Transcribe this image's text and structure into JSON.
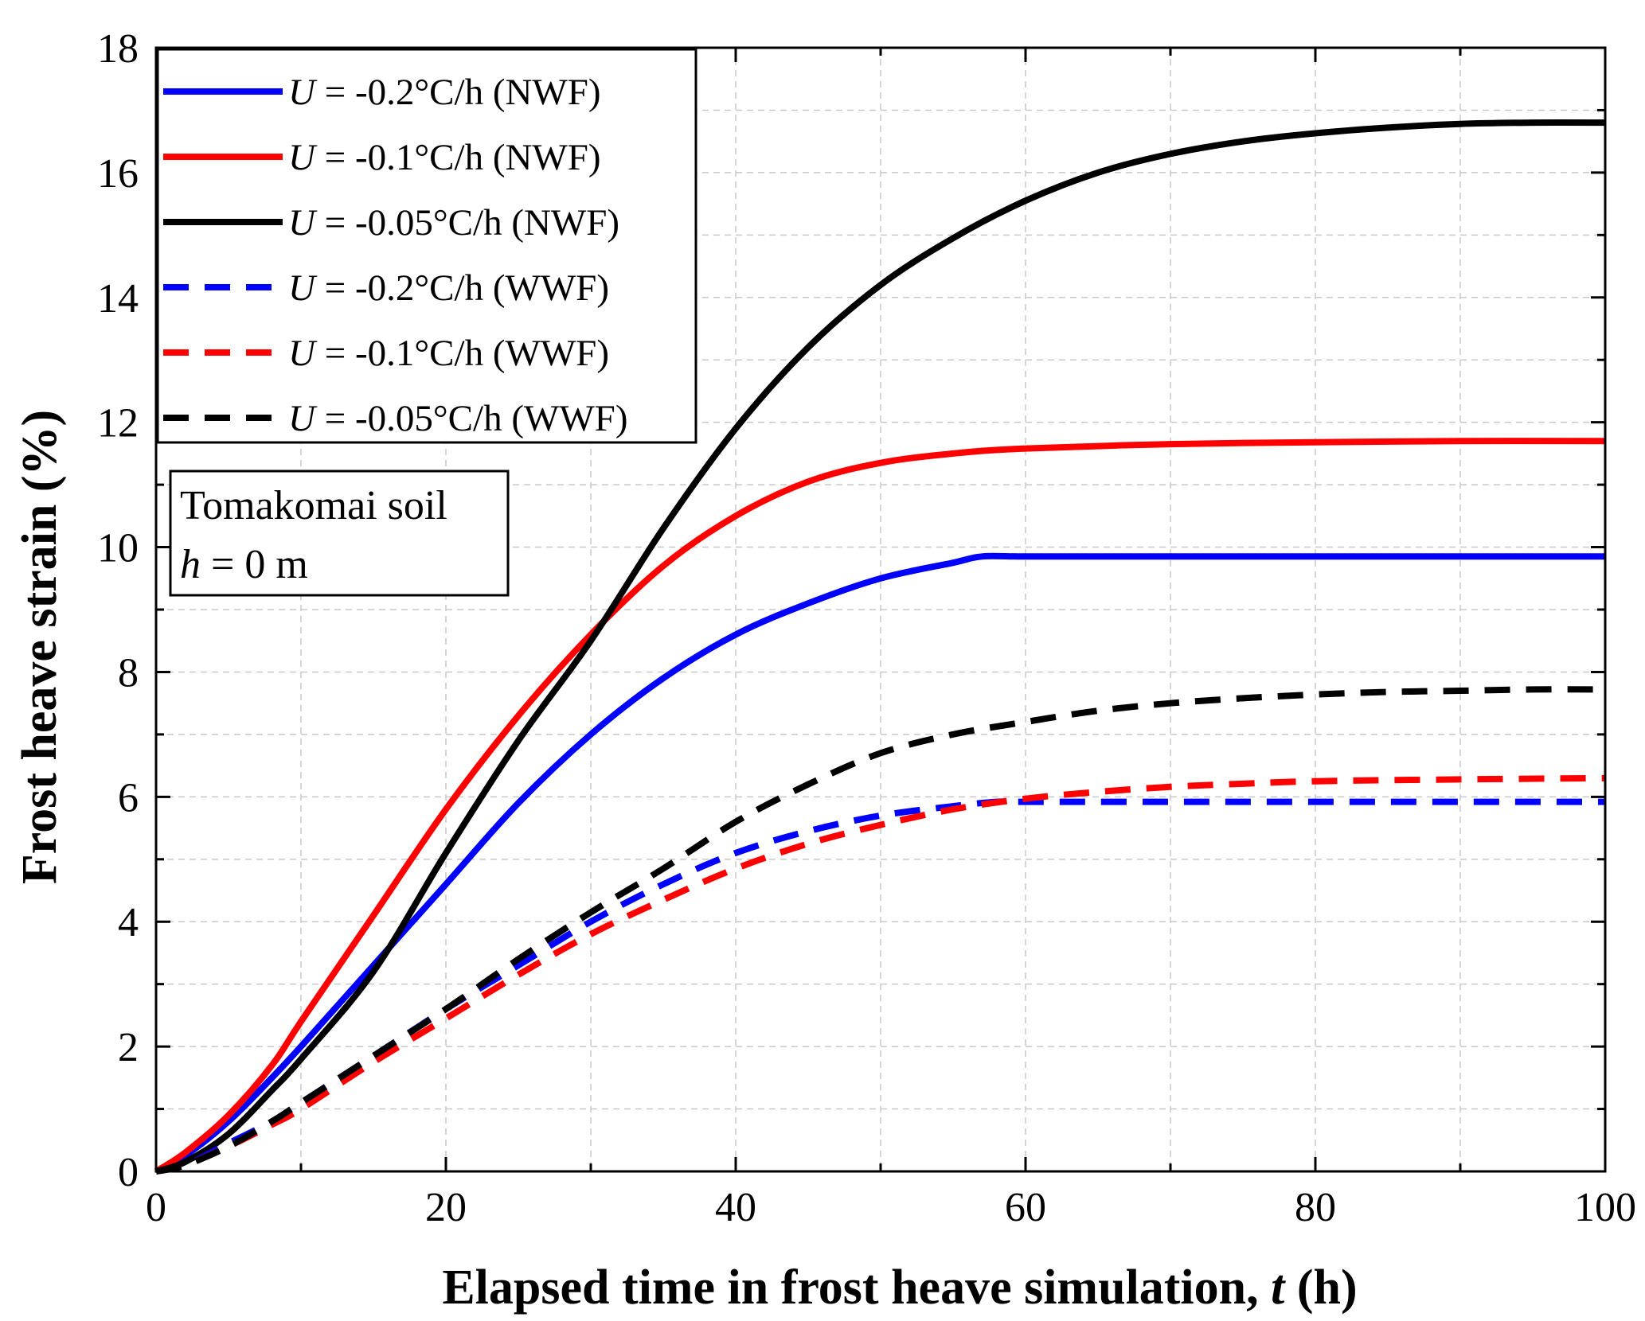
{
  "chart_data": {
    "type": "line",
    "title": "",
    "xlabel_main": "Elapsed time in frost heave simulation, ",
    "xlabel_var": "t",
    "xlabel_unit": " (h)",
    "ylabel": "Frost heave strain (%)",
    "xlim": [
      0,
      100
    ],
    "ylim": [
      0,
      18
    ],
    "xticks": [
      0,
      20,
      40,
      60,
      80,
      100
    ],
    "xtick_labels": [
      "0",
      "20",
      "40",
      "60",
      "80",
      "100"
    ],
    "yticks": [
      0,
      2,
      4,
      6,
      8,
      10,
      12,
      14,
      16,
      18
    ],
    "ytick_labels": [
      "0",
      "2",
      "4",
      "6",
      "8",
      "10",
      "12",
      "14",
      "16",
      "18"
    ],
    "grid": true,
    "legend_position": "top-left",
    "annotation": {
      "line1": "Tomakomai soil",
      "line2_var": "h",
      "line2_rest": " = 0 m"
    },
    "series": [
      {
        "name": "U = -0.2°C/h (NWF)",
        "legend_var": "U",
        "legend_rest": " = -0.2°C/h (NWF)",
        "color": "#0000ff",
        "style": "solid",
        "x": [
          0,
          2,
          5,
          8,
          10,
          15,
          20,
          25,
          30,
          35,
          40,
          45,
          50,
          55,
          57,
          60,
          70,
          80,
          90,
          100
        ],
        "y": [
          0,
          0.25,
          0.8,
          1.5,
          2.0,
          3.3,
          4.6,
          5.9,
          7.0,
          7.9,
          8.6,
          9.1,
          9.5,
          9.75,
          9.85,
          9.85,
          9.85,
          9.85,
          9.85,
          9.85
        ]
      },
      {
        "name": "U = -0.1°C/h (NWF)",
        "legend_var": "U",
        "legend_rest": " = -0.1°C/h (NWF)",
        "color": "#ff0000",
        "style": "solid",
        "x": [
          0,
          2,
          5,
          8,
          10,
          15,
          20,
          25,
          30,
          35,
          40,
          45,
          50,
          55,
          60,
          70,
          80,
          90,
          100
        ],
        "y": [
          0,
          0.3,
          0.9,
          1.7,
          2.4,
          4.1,
          5.8,
          7.3,
          8.6,
          9.7,
          10.5,
          11.05,
          11.35,
          11.5,
          11.58,
          11.65,
          11.68,
          11.7,
          11.7
        ]
      },
      {
        "name": "U = -0.05°C/h (NWF)",
        "legend_var": "U",
        "legend_rest": " = -0.05°C/h (NWF)",
        "color": "#000000",
        "style": "solid",
        "x": [
          0,
          2,
          5,
          8,
          10,
          15,
          20,
          25,
          30,
          35,
          40,
          45,
          50,
          55,
          60,
          65,
          70,
          75,
          80,
          85,
          90,
          95,
          100
        ],
        "y": [
          0,
          0.15,
          0.6,
          1.3,
          1.8,
          3.2,
          5.1,
          6.9,
          8.5,
          10.3,
          11.9,
          13.2,
          14.2,
          14.95,
          15.55,
          16.0,
          16.3,
          16.5,
          16.63,
          16.72,
          16.78,
          16.8,
          16.8
        ]
      },
      {
        "name": "U = -0.2°C/h (WWF)",
        "legend_var": "U",
        "legend_rest": " = -0.2°C/h (WWF)",
        "color": "#0000ff",
        "style": "dashed",
        "x": [
          0,
          2,
          5,
          8,
          10,
          15,
          20,
          25,
          30,
          35,
          40,
          45,
          50,
          55,
          58,
          60,
          70,
          80,
          90,
          100
        ],
        "y": [
          0,
          0.1,
          0.45,
          0.8,
          1.1,
          1.85,
          2.6,
          3.3,
          4.0,
          4.6,
          5.1,
          5.45,
          5.7,
          5.85,
          5.92,
          5.92,
          5.92,
          5.92,
          5.92,
          5.92
        ]
      },
      {
        "name": "U = -0.1°C/h (WWF)",
        "legend_var": "U",
        "legend_rest": " = -0.1°C/h (WWF)",
        "color": "#ff0000",
        "style": "dashed",
        "x": [
          0,
          2,
          5,
          8,
          10,
          15,
          20,
          25,
          30,
          35,
          40,
          45,
          50,
          55,
          60,
          65,
          70,
          75,
          80,
          90,
          100
        ],
        "y": [
          0,
          0.1,
          0.4,
          0.75,
          1.0,
          1.75,
          2.45,
          3.15,
          3.8,
          4.35,
          4.85,
          5.25,
          5.55,
          5.8,
          5.97,
          6.08,
          6.16,
          6.21,
          6.25,
          6.28,
          6.3
        ]
      },
      {
        "name": "U = -0.05°C/h (WWF)",
        "legend_var": "U",
        "legend_rest": " = -0.05°C/h (WWF)",
        "color": "#000000",
        "style": "dashed",
        "x": [
          0,
          2,
          5,
          8,
          10,
          15,
          20,
          25,
          30,
          35,
          40,
          45,
          50,
          55,
          60,
          65,
          70,
          75,
          80,
          85,
          90,
          95,
          100
        ],
        "y": [
          0,
          0.1,
          0.4,
          0.8,
          1.1,
          1.85,
          2.6,
          3.4,
          4.15,
          4.85,
          5.6,
          6.2,
          6.7,
          7.0,
          7.2,
          7.38,
          7.5,
          7.58,
          7.64,
          7.68,
          7.7,
          7.72,
          7.72
        ]
      }
    ]
  }
}
